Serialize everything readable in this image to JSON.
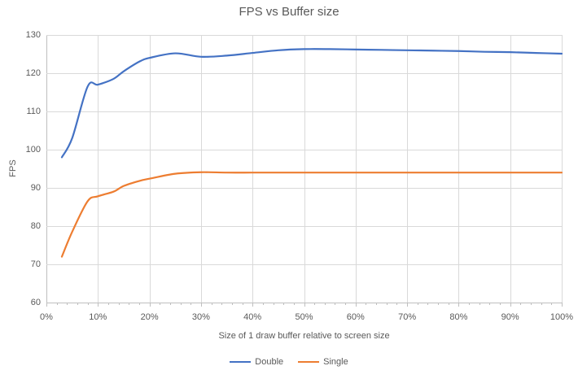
{
  "title": "FPS vs Buffer size",
  "colors": {
    "title_text": "#595959",
    "axis_text": "#595959",
    "gridline": "#d9d9d9",
    "axis_line": "#bfbfbf",
    "series_double": "#4472c4",
    "series_single": "#ed7d31",
    "background": "#ffffff"
  },
  "chart_data": {
    "type": "line",
    "title": "FPS vs Buffer size",
    "xlabel": "Size of 1 draw buffer relative to screen size",
    "ylabel": "FPS",
    "xlim": [
      0,
      100
    ],
    "ylim": [
      60,
      130
    ],
    "grid": true,
    "smooth_lines": true,
    "markers": false,
    "legend_position": "bottom",
    "x_ticks": [
      {
        "value": 0,
        "label": "0%"
      },
      {
        "value": 10,
        "label": "10%"
      },
      {
        "value": 20,
        "label": "20%"
      },
      {
        "value": 30,
        "label": "30%"
      },
      {
        "value": 40,
        "label": "40%"
      },
      {
        "value": 50,
        "label": "50%"
      },
      {
        "value": 60,
        "label": "60%"
      },
      {
        "value": 70,
        "label": "70%"
      },
      {
        "value": 80,
        "label": "80%"
      },
      {
        "value": 90,
        "label": "90%"
      },
      {
        "value": 100,
        "label": "100%"
      }
    ],
    "x_minor_tick_step": 2,
    "y_ticks": [
      {
        "value": 60,
        "label": "60"
      },
      {
        "value": 70,
        "label": "70"
      },
      {
        "value": 80,
        "label": "80"
      },
      {
        "value": 90,
        "label": "90"
      },
      {
        "value": 100,
        "label": "100"
      },
      {
        "value": 110,
        "label": "110"
      },
      {
        "value": 120,
        "label": "120"
      },
      {
        "value": 130,
        "label": "130"
      }
    ],
    "x": [
      3,
      5,
      8,
      10,
      13,
      15,
      18,
      20,
      25,
      30,
      35,
      40,
      45,
      50,
      55,
      60,
      65,
      70,
      75,
      80,
      85,
      90,
      95,
      100
    ],
    "series": [
      {
        "name": "Double",
        "color": "#4472c4",
        "values": [
          98,
          103,
          116.5,
          117,
          118.5,
          120.5,
          123,
          124,
          125.2,
          124.3,
          124.6,
          125.3,
          126,
          126.3,
          126.3,
          126.2,
          126.1,
          126,
          125.9,
          125.8,
          125.6,
          125.5,
          125.3,
          125.1
        ]
      },
      {
        "name": "Single",
        "color": "#ed7d31",
        "values": [
          72,
          78.5,
          86.5,
          87.8,
          89,
          90.5,
          91.8,
          92.4,
          93.7,
          94.1,
          94,
          94,
          94,
          94,
          94,
          94,
          94,
          94,
          94,
          94,
          94,
          94,
          94,
          94
        ]
      }
    ]
  }
}
